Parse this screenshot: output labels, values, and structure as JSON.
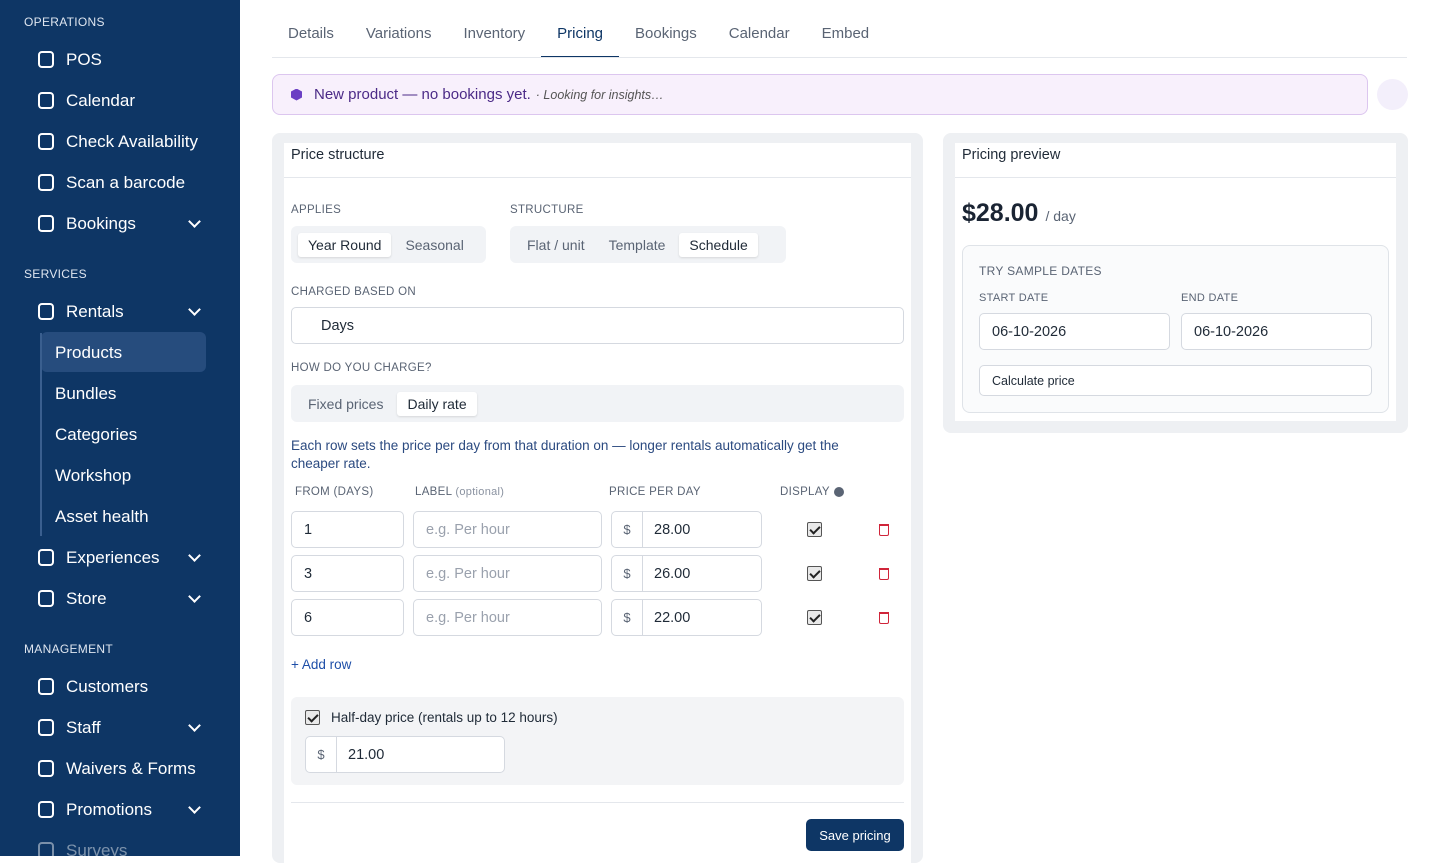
{
  "sidebar": {
    "sections": [
      {
        "title": "OPERATIONS",
        "items": [
          {
            "label": "POS"
          },
          {
            "label": "Calendar"
          },
          {
            "label": "Check Availability"
          },
          {
            "label": "Scan a barcode"
          },
          {
            "label": "Bookings",
            "expandable": true
          }
        ]
      },
      {
        "title": "SERVICES",
        "items": [
          {
            "label": "Rentals",
            "expandable": true,
            "children": [
              {
                "label": "Products",
                "active": true
              },
              {
                "label": "Bundles"
              },
              {
                "label": "Categories"
              },
              {
                "label": "Workshop"
              },
              {
                "label": "Asset health"
              }
            ]
          },
          {
            "label": "Experiences",
            "expandable": true
          },
          {
            "label": "Store",
            "expandable": true
          }
        ]
      },
      {
        "title": "MANAGEMENT",
        "items": [
          {
            "label": "Customers"
          },
          {
            "label": "Staff",
            "expandable": true
          },
          {
            "label": "Waivers & Forms"
          },
          {
            "label": "Promotions",
            "expandable": true
          },
          {
            "label": "Surveys",
            "dimmed": true
          }
        ]
      }
    ]
  },
  "tabs": {
    "items": [
      "Details",
      "Variations",
      "Inventory",
      "Pricing",
      "Bookings",
      "Calendar",
      "Embed"
    ],
    "active": 3
  },
  "banner": {
    "message": "New product — no bookings yet.",
    "note": "· Looking for insights…"
  },
  "price_structure": {
    "title": "Price structure",
    "applies": {
      "label": "APPLIES",
      "options": [
        "Year Round",
        "Seasonal"
      ],
      "selected": 0
    },
    "structure": {
      "label": "STRUCTURE",
      "options": [
        "Flat / unit",
        "Template",
        "Schedule"
      ],
      "selected": 2
    },
    "charged_based_on": {
      "label": "CHARGED BASED ON",
      "value": "Days"
    },
    "how_charge": {
      "label": "HOW DO YOU CHARGE?",
      "options": [
        "Fixed prices",
        "Daily rate"
      ],
      "selected": 1
    },
    "description": "Each row sets the price per day from that duration on — longer rentals automatically get the cheaper rate.",
    "table": {
      "headers": {
        "from": "FROM (DAYS)",
        "label": "LABEL",
        "label_hint": "(optional)",
        "price": "PRICE PER DAY",
        "display": "DISPLAY"
      },
      "rows": [
        {
          "from": "1",
          "label_placeholder": "e.g. Per hour",
          "currency": "$",
          "price": "28.00",
          "display": true
        },
        {
          "from": "3",
          "label_placeholder": "e.g. Per hour",
          "currency": "$",
          "price": "26.00",
          "display": true
        },
        {
          "from": "6",
          "label_placeholder": "e.g. Per hour",
          "currency": "$",
          "price": "22.00",
          "display": true
        }
      ]
    },
    "add_row": "+ Add row",
    "half_day": {
      "label": "Half-day price (rentals up to 12 hours)",
      "checked": true,
      "currency": "$",
      "price": "21.00"
    },
    "save": "Save pricing"
  },
  "preview": {
    "title": "Pricing preview",
    "price": "$28.00",
    "unit": "/ day",
    "sample": {
      "title": "TRY SAMPLE DATES",
      "start_label": "START DATE",
      "start": "06-10-2026",
      "end_label": "END DATE",
      "end": "06-10-2026",
      "button": "Calculate price"
    }
  }
}
